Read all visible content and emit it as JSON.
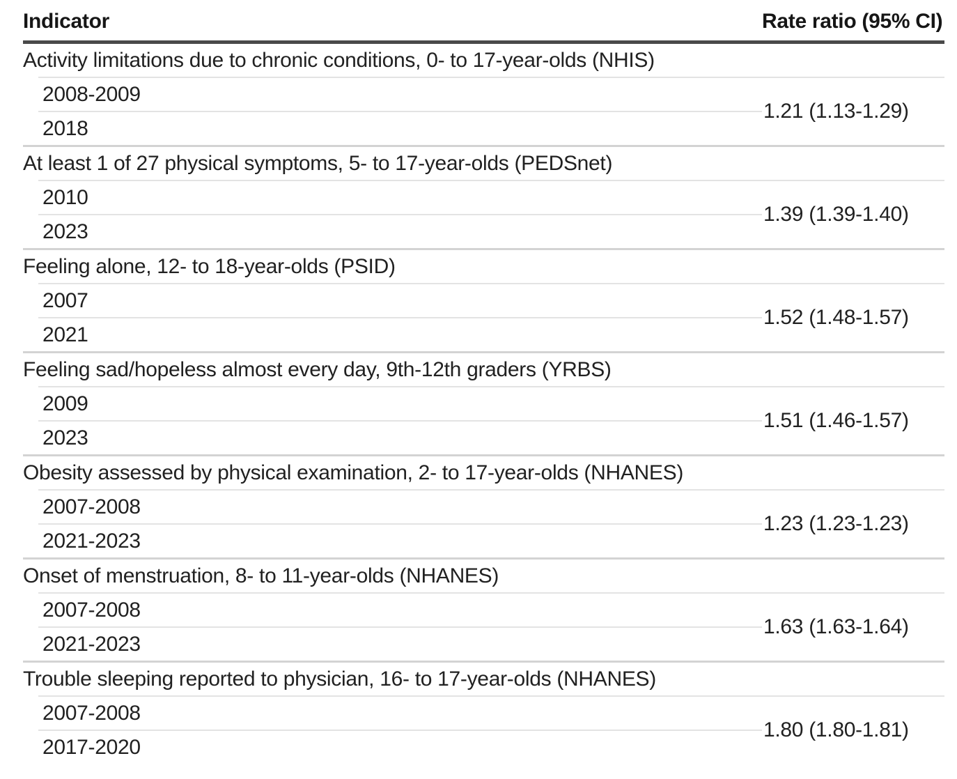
{
  "chart_data": {
    "type": "table",
    "columns": {
      "indicator": "Indicator",
      "rate_ratio": "Rate ratio (95% CI)"
    },
    "groups": [
      {
        "indicator": "Activity limitations due to chronic conditions, 0- to 17-year-olds (NHIS)",
        "periods": [
          "2008-2009",
          "2018"
        ],
        "rate_ratio": "1.21 (1.13-1.29)"
      },
      {
        "indicator": "At least 1 of 27 physical symptoms, 5- to 17-year-olds (PEDSnet)",
        "periods": [
          "2010",
          "2023"
        ],
        "rate_ratio": "1.39 (1.39-1.40)"
      },
      {
        "indicator": "Feeling alone, 12- to 18-year-olds (PSID)",
        "periods": [
          "2007",
          "2021"
        ],
        "rate_ratio": "1.52 (1.48-1.57)"
      },
      {
        "indicator": "Feeling sad/hopeless almost every day, 9th-12th graders (YRBS)",
        "periods": [
          "2009",
          "2023"
        ],
        "rate_ratio": "1.51 (1.46-1.57)"
      },
      {
        "indicator": "Obesity assessed by physical examination, 2- to 17-year-olds (NHANES)",
        "periods": [
          "2007-2008",
          "2021-2023"
        ],
        "rate_ratio": "1.23 (1.23-1.23)"
      },
      {
        "indicator": "Onset of menstruation, 8- to 11-year-olds (NHANES)",
        "periods": [
          "2007-2008",
          "2021-2023"
        ],
        "rate_ratio": "1.63 (1.63-1.64)"
      },
      {
        "indicator": "Trouble sleeping reported to physician, 16- to 17-year-olds (NHANES)",
        "periods": [
          "2007-2008",
          "2017-2020"
        ],
        "rate_ratio": "1.80 (1.80-1.81)"
      }
    ],
    "layout": {
      "legend": "none",
      "grid": "horizontal-rules"
    },
    "colors": {
      "text": "#212121",
      "header_rule": "#4a4a4a",
      "row_divider": "#e3e3e3",
      "group_divider": "#d3d3d3"
    }
  }
}
